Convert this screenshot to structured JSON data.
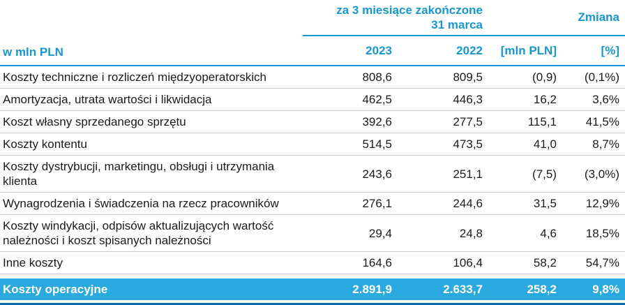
{
  "colors": {
    "accent_text": "#1697d4",
    "header_lines": "#1697d4",
    "total_bar_bg": "#2aa9e0",
    "total_bar_text": "#ffffff",
    "row_divider": "#c9c9c9",
    "bottom_line": "#1668b0",
    "body_text": "#1a1a1a"
  },
  "table": {
    "unit_label": "w mln PLN",
    "period_header": "za 3 miesiące zakończone\n31 marca",
    "change_header": "Zmiana",
    "columns": [
      "2023",
      "2022",
      "[mln PLN]",
      "[%]"
    ],
    "rows": [
      {
        "label": "Koszty techniczne i rozliczeń międzyoperatorskich",
        "y2023": "808,6",
        "y2022": "809,5",
        "change_mln": "(0,9)",
        "change_pct": "(0,1%)"
      },
      {
        "label": "Amortyzacja, utrata wartości i likwidacja",
        "y2023": "462,5",
        "y2022": "446,3",
        "change_mln": "16,2",
        "change_pct": "3,6%"
      },
      {
        "label": "Koszt własny sprzedanego sprzętu",
        "y2023": "392,6",
        "y2022": "277,5",
        "change_mln": "115,1",
        "change_pct": "41,5%"
      },
      {
        "label": "Koszty kontentu",
        "y2023": "514,5",
        "y2022": "473,5",
        "change_mln": "41,0",
        "change_pct": "8,7%"
      },
      {
        "label": "Koszty dystrybucji, marketingu, obsługi i utrzymania klienta",
        "y2023": "243,6",
        "y2022": "251,1",
        "change_mln": "(7,5)",
        "change_pct": "(3,0%)"
      },
      {
        "label": "Wynagrodzenia i świadczenia na rzecz pracowników",
        "y2023": "276,1",
        "y2022": "244,6",
        "change_mln": "31,5",
        "change_pct": "12,9%"
      },
      {
        "label": "Koszty windykacji, odpisów aktualizujących wartość należności i koszt spisanych należności",
        "y2023": "29,4",
        "y2022": "24,8",
        "change_mln": "4,6",
        "change_pct": "18,5%"
      },
      {
        "label": "Inne koszty",
        "y2023": "164,6",
        "y2022": "106,4",
        "change_mln": "58,2",
        "change_pct": "54,7%"
      }
    ],
    "total_row": {
      "label": "Koszty operacyjne",
      "y2023": "2.891,9",
      "y2022": "2.633,7",
      "change_mln": "258,2",
      "change_pct": "9,8%"
    }
  }
}
